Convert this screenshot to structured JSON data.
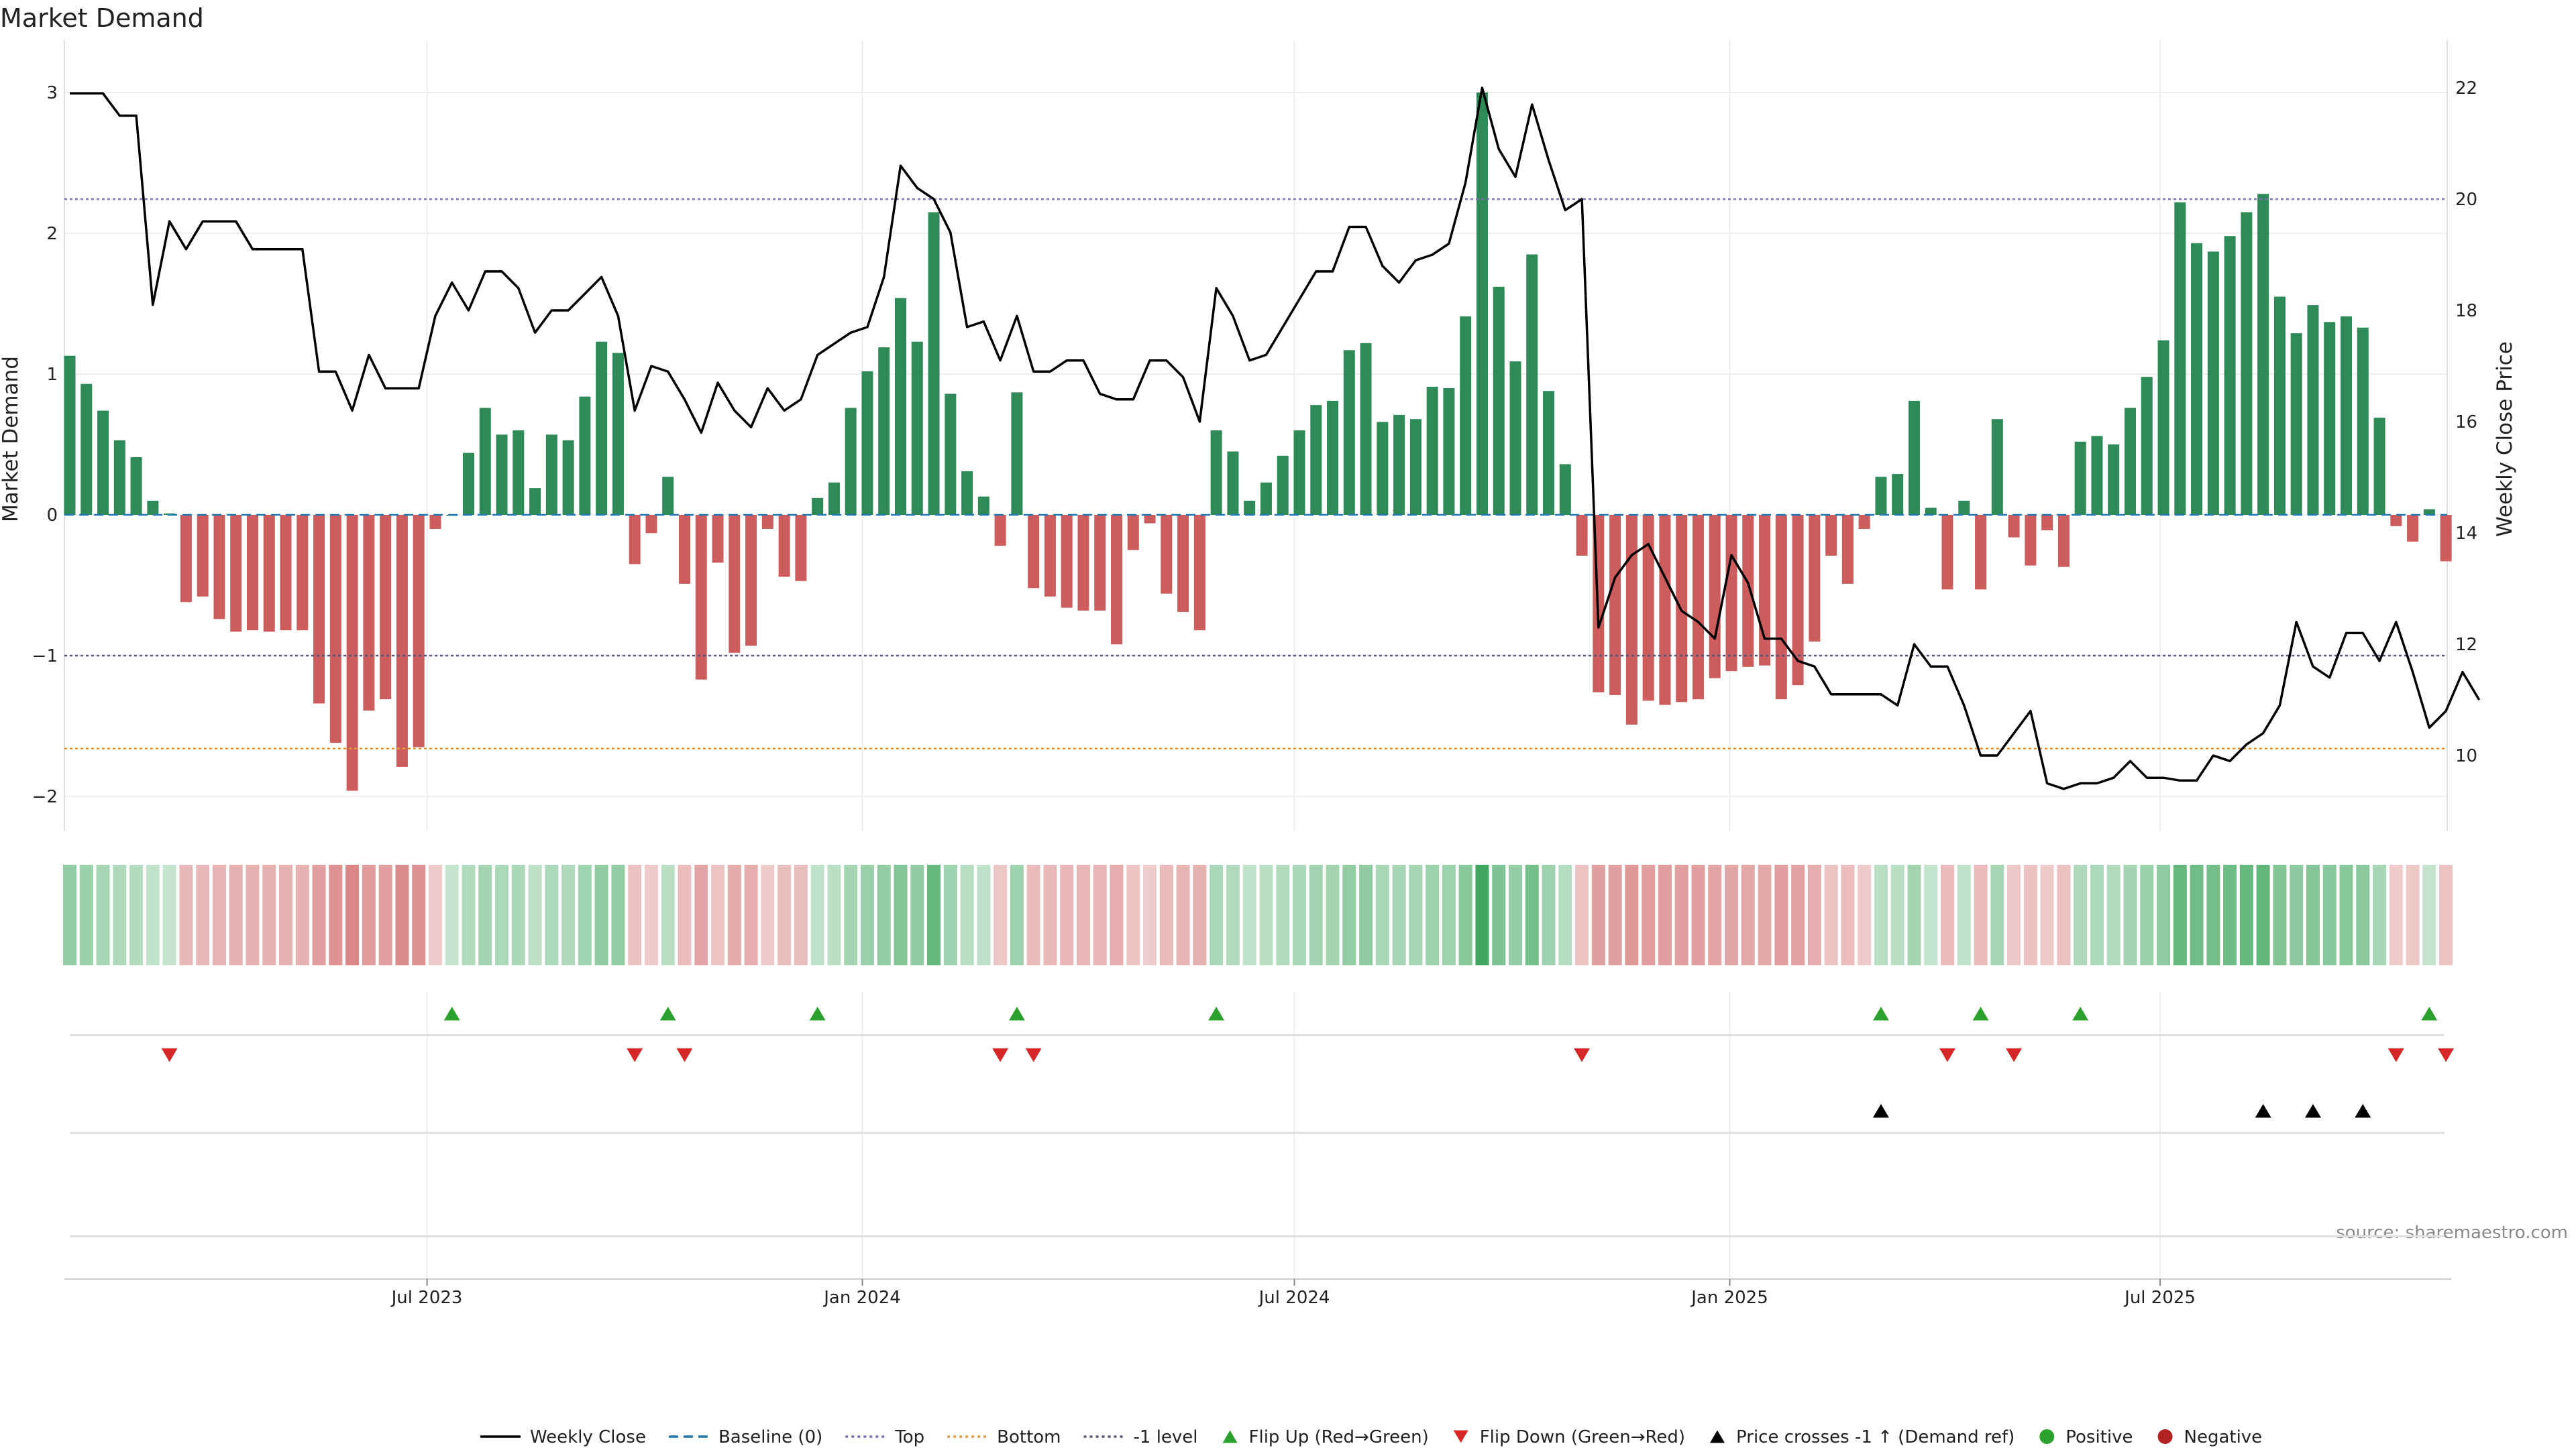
{
  "chart_data": {
    "type": "bar",
    "title": "Market Demand",
    "ylabel": "Market Demand",
    "y2label": "Weekly Close Price",
    "ylim": [
      -2.25,
      3.1
    ],
    "y2lim": [
      9.2,
      22.3
    ],
    "yticks": [
      3,
      2,
      1,
      0,
      -1,
      -2
    ],
    "ytick_labels": [
      "3",
      "2",
      "1",
      "0",
      "−1",
      "−2"
    ],
    "y2ticks": [
      22,
      20,
      18,
      16,
      14,
      12,
      10
    ],
    "y2tick_labels": [
      "22",
      "20",
      "18",
      "16",
      "14",
      "12",
      "10"
    ],
    "xticks": [
      {
        "label": "Jul 2023",
        "index": 21.5
      },
      {
        "label": "Jan 2024",
        "index": 47.7
      },
      {
        "label": "Jul 2024",
        "index": 73.7
      },
      {
        "label": "Jan 2025",
        "index": 99.9
      },
      {
        "label": "Jul 2025",
        "index": 125.8
      }
    ],
    "grid": true,
    "reference_lines": [
      {
        "name": "Baseline (0)",
        "axis": "left",
        "value": 0,
        "color": "#1f77b4",
        "style": "dashed"
      },
      {
        "name": "Top",
        "axis": "right",
        "value": 20.0,
        "color": "#7b6fb0",
        "style": "dotted"
      },
      {
        "name": "Bottom",
        "axis": "left",
        "value": -1.66,
        "color": "#e09a3b",
        "style": "dotted"
      },
      {
        "name": "-1 level",
        "axis": "left",
        "value": -1.0,
        "color": "#555577",
        "style": "dotted"
      }
    ],
    "series": [
      {
        "name": "Market Demand",
        "axis": "left",
        "values": [
          1.13,
          0.93,
          0.74,
          0.53,
          0.41,
          0.1,
          0.01,
          -0.62,
          -0.58,
          -0.74,
          -0.83,
          -0.82,
          -0.83,
          -0.82,
          -0.82,
          -1.34,
          -1.62,
          -1.96,
          -1.39,
          -1.31,
          -1.79,
          -1.65,
          -0.1,
          0.0,
          0.44,
          0.76,
          0.57,
          0.6,
          0.19,
          0.57,
          0.53,
          0.84,
          1.23,
          1.15,
          -0.35,
          -0.13,
          0.27,
          -0.49,
          -1.17,
          -0.34,
          -0.98,
          -0.93,
          -0.1,
          -0.44,
          -0.47,
          0.12,
          0.23,
          0.76,
          1.02,
          1.19,
          1.54,
          1.23,
          2.15,
          0.86,
          0.31,
          0.13,
          -0.22,
          0.87,
          -0.52,
          -0.58,
          -0.66,
          -0.68,
          -0.68,
          -0.92,
          -0.25,
          -0.06,
          -0.56,
          -0.69,
          -0.82,
          0.6,
          0.45,
          0.1,
          0.23,
          0.42,
          0.6,
          0.78,
          0.81,
          1.17,
          1.22,
          0.66,
          0.71,
          0.68,
          0.91,
          0.9,
          1.41,
          3.0,
          1.62,
          1.09,
          1.85,
          0.88,
          0.36,
          -0.29,
          -1.26,
          -1.28,
          -1.49,
          -1.32,
          -1.35,
          -1.33,
          -1.31,
          -1.16,
          -1.11,
          -1.08,
          -1.07,
          -1.31,
          -1.21,
          -0.9,
          -0.29,
          -0.49,
          -0.1,
          0.27,
          0.29,
          0.81,
          0.05,
          -0.53,
          0.1,
          -0.53,
          0.68,
          -0.16,
          -0.36,
          -0.11,
          -0.37,
          0.52,
          0.56,
          0.5,
          0.76,
          0.98,
          1.24,
          2.22,
          1.93,
          1.87,
          1.98,
          2.15,
          2.28,
          1.55,
          1.29,
          1.49,
          1.37,
          1.41,
          1.33,
          0.69,
          -0.08,
          -0.19,
          0.04,
          -0.33
        ]
      },
      {
        "name": "Weekly Close",
        "axis": "right",
        "values": [
          21.9,
          21.9,
          21.9,
          21.5,
          21.5,
          18.1,
          19.6,
          19.1,
          19.6,
          19.6,
          19.6,
          19.1,
          19.1,
          19.1,
          19.1,
          16.9,
          16.9,
          16.2,
          17.2,
          16.6,
          16.6,
          16.6,
          17.9,
          18.5,
          18.0,
          18.7,
          18.7,
          18.4,
          17.6,
          18.0,
          18.0,
          18.3,
          18.6,
          17.9,
          16.2,
          17.0,
          16.9,
          16.4,
          15.8,
          16.7,
          16.2,
          15.9,
          16.6,
          16.2,
          16.4,
          17.2,
          17.4,
          17.6,
          17.7,
          18.6,
          20.6,
          20.2,
          20.0,
          19.4,
          17.7,
          17.8,
          17.1,
          17.9,
          16.9,
          16.9,
          17.1,
          17.1,
          16.5,
          16.4,
          16.4,
          17.1,
          17.1,
          16.8,
          16.0,
          18.4,
          17.9,
          17.1,
          17.2,
          17.7,
          18.2,
          18.7,
          18.7,
          19.5,
          19.5,
          18.8,
          18.5,
          18.9,
          19.0,
          19.2,
          20.3,
          22.0,
          20.9,
          20.4,
          21.7,
          20.7,
          19.8,
          20.0,
          12.3,
          13.2,
          13.6,
          13.8,
          13.2,
          12.6,
          12.4,
          12.1,
          13.6,
          13.1,
          12.1,
          12.1,
          11.7,
          11.6,
          11.1,
          11.1,
          11.1,
          11.1,
          10.9,
          12.0,
          11.6,
          11.6,
          10.9,
          10.0,
          10.0,
          10.4,
          10.8,
          9.5,
          9.4,
          9.5,
          9.5,
          9.6,
          9.9,
          9.6,
          9.6,
          9.55,
          9.55,
          10.0,
          9.9,
          10.2,
          10.4,
          10.9,
          12.4,
          11.6,
          11.4,
          12.2,
          12.2,
          11.7,
          12.4,
          11.5,
          10.5,
          10.8,
          11.5,
          11.0
        ]
      }
    ],
    "flip_up_indices": [
      23,
      36,
      45,
      57,
      69,
      109,
      115,
      121,
      142
    ],
    "flip_down_indices": [
      6,
      34,
      37,
      56,
      58,
      91,
      113,
      117,
      140,
      143
    ],
    "cross_indices": [
      109,
      132,
      135,
      138
    ],
    "legend": {
      "position": "bottom-center",
      "items": [
        {
          "label": "Weekly Close",
          "kind": "line",
          "color": "#000000"
        },
        {
          "label": "Baseline (0)",
          "kind": "dashed",
          "color": "#1f77b4"
        },
        {
          "label": "Top",
          "kind": "dotted",
          "color": "#7b6fb0"
        },
        {
          "label": "Bottom",
          "kind": "dotted",
          "color": "#e09a3b"
        },
        {
          "label": "-1 level",
          "kind": "dotted",
          "color": "#555577"
        },
        {
          "label": "Flip Up (Red→Green)",
          "kind": "tri-up",
          "color": "#2ca02c"
        },
        {
          "label": "Flip Down (Green→Red)",
          "kind": "tri-down",
          "color": "#d62728"
        },
        {
          "label": "Price crosses -1 ↑ (Demand ref)",
          "kind": "tri-up",
          "color": "#000000"
        },
        {
          "label": "Positive",
          "kind": "dot",
          "color": "#2ca02c"
        },
        {
          "label": "Negative",
          "kind": "dot",
          "color": "#b22222"
        }
      ]
    },
    "source": "source: sharemaestro.com",
    "colors": {
      "positive_bar": "#2e8b57",
      "negative_bar": "#cd5c5c",
      "price_line": "#000000",
      "heat_positive": "#2e9e4f",
      "heat_negative": "#c85050"
    }
  }
}
